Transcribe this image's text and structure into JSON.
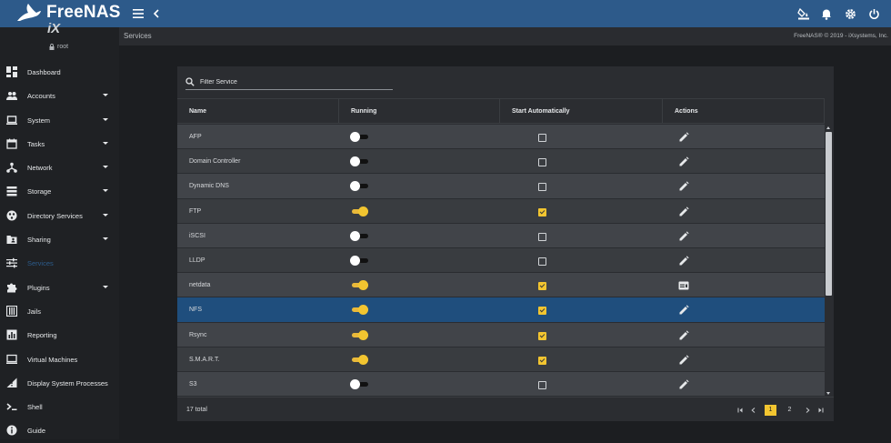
{
  "brand": {
    "name": "FreeNAS"
  },
  "user": {
    "name": "root"
  },
  "sidebar": {
    "items": [
      {
        "label": "Dashboard",
        "icon": "dashboard-icon",
        "caret": false,
        "active": false
      },
      {
        "label": "Accounts",
        "icon": "people-icon",
        "caret": true,
        "active": false
      },
      {
        "label": "System",
        "icon": "laptop-icon",
        "caret": true,
        "active": false
      },
      {
        "label": "Tasks",
        "icon": "calendar-icon",
        "caret": true,
        "active": false
      },
      {
        "label": "Network",
        "icon": "network-icon",
        "caret": true,
        "active": false
      },
      {
        "label": "Storage",
        "icon": "storage-icon",
        "caret": true,
        "active": false
      },
      {
        "label": "Directory Services",
        "icon": "directory-icon",
        "caret": true,
        "active": false
      },
      {
        "label": "Sharing",
        "icon": "folder-shared-icon",
        "caret": true,
        "active": false
      },
      {
        "label": "Services",
        "icon": "tune-icon",
        "caret": false,
        "active": true
      },
      {
        "label": "Plugins",
        "icon": "puzzle-icon",
        "caret": true,
        "active": false
      },
      {
        "label": "Jails",
        "icon": "jail-icon",
        "caret": false,
        "active": false
      },
      {
        "label": "Reporting",
        "icon": "chart-icon",
        "caret": false,
        "active": false
      },
      {
        "label": "Virtual Machines",
        "icon": "computer-icon",
        "caret": false,
        "active": false
      },
      {
        "label": "Display System Processes",
        "icon": "processes-icon",
        "caret": false,
        "active": false
      },
      {
        "label": "Shell",
        "icon": "terminal-icon",
        "caret": false,
        "active": false
      },
      {
        "label": "Guide",
        "icon": "info-icon",
        "caret": false,
        "active": false
      }
    ]
  },
  "breadcrumb": {
    "title": "Services",
    "copyright": "FreeNAS® © 2019 - iXsystems, Inc."
  },
  "filter": {
    "placeholder": "Filter Service"
  },
  "table": {
    "columns": [
      "Name",
      "Running",
      "Start Automatically",
      "Actions"
    ],
    "rows": [
      {
        "name": "AFP",
        "running": false,
        "auto": false,
        "action": "edit-icon"
      },
      {
        "name": "Domain Controller",
        "running": false,
        "auto": false,
        "action": "edit-icon"
      },
      {
        "name": "Dynamic DNS",
        "running": false,
        "auto": false,
        "action": "edit-icon"
      },
      {
        "name": "FTP",
        "running": true,
        "auto": true,
        "action": "edit-icon"
      },
      {
        "name": "iSCSI",
        "running": false,
        "auto": false,
        "action": "edit-icon"
      },
      {
        "name": "LLDP",
        "running": false,
        "auto": false,
        "action": "edit-icon"
      },
      {
        "name": "netdata",
        "running": true,
        "auto": true,
        "action": "web-icon"
      },
      {
        "name": "NFS",
        "running": true,
        "auto": true,
        "action": "edit-icon",
        "selected": true
      },
      {
        "name": "Rsync",
        "running": true,
        "auto": true,
        "action": "edit-icon"
      },
      {
        "name": "S.M.A.R.T.",
        "running": true,
        "auto": true,
        "action": "edit-icon"
      },
      {
        "name": "S3",
        "running": false,
        "auto": false,
        "action": "edit-icon"
      }
    ],
    "total": "17 total",
    "pages": [
      "1",
      "2"
    ],
    "current_page": "1"
  },
  "colors": {
    "topbar": "#2d5a8a",
    "accent": "#f2c530",
    "selected_row": "#1f4e7d"
  }
}
